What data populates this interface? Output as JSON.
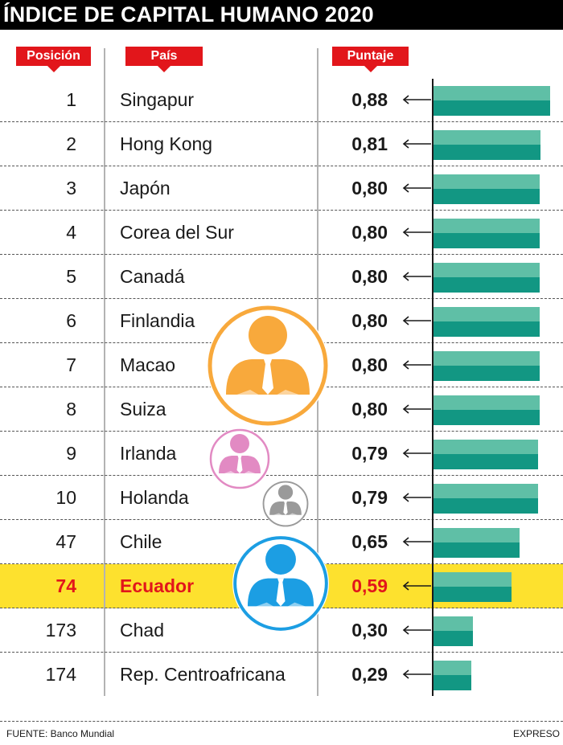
{
  "title": "ÍNDICE DE CAPITAL HUMANO 2020",
  "headers": {
    "position": "Posición",
    "country": "País",
    "score": "Puntaje"
  },
  "chart_data": {
    "type": "bar",
    "orientation": "horizontal",
    "title": "ÍNDICE DE CAPITAL HUMANO 2020",
    "value_min": 0,
    "rows": [
      {
        "position": "1",
        "country": "Singapur",
        "score": 0.88,
        "label": "0,88"
      },
      {
        "position": "2",
        "country": "Hong Kong",
        "score": 0.81,
        "label": "0,81"
      },
      {
        "position": "3",
        "country": "Japón",
        "score": 0.8,
        "label": "0,80"
      },
      {
        "position": "4",
        "country": "Corea del Sur",
        "score": 0.8,
        "label": "0,80"
      },
      {
        "position": "5",
        "country": "Canadá",
        "score": 0.8,
        "label": "0,80"
      },
      {
        "position": "6",
        "country": "Finlandia",
        "score": 0.8,
        "label": "0,80"
      },
      {
        "position": "7",
        "country": "Macao",
        "score": 0.8,
        "label": "0,80"
      },
      {
        "position": "8",
        "country": "Suiza",
        "score": 0.8,
        "label": "0,80"
      },
      {
        "position": "9",
        "country": "Irlanda",
        "score": 0.79,
        "label": "0,79"
      },
      {
        "position": "10",
        "country": "Holanda",
        "score": 0.79,
        "label": "0,79"
      },
      {
        "position": "47",
        "country": "Chile",
        "score": 0.65,
        "label": "0,65"
      },
      {
        "position": "74",
        "country": "Ecuador",
        "score": 0.59,
        "label": "0,59",
        "highlight": true
      },
      {
        "position": "173",
        "country": "Chad",
        "score": 0.3,
        "label": "0,30"
      },
      {
        "position": "174",
        "country": "Rep. Centroafricana",
        "score": 0.29,
        "label": "0,29"
      }
    ]
  },
  "colors": {
    "header_red": "#e2161b",
    "highlight_yellow": "#fde12e",
    "bar_light": "#5fbfa6",
    "bar_dark": "#129783",
    "person_orange": "#f8a93c",
    "person_pink": "#e28ac3",
    "person_gray": "#9a9a9a",
    "person_blue": "#1c9ee3"
  },
  "icons": [
    "person-orange-icon",
    "person-pink-icon",
    "person-gray-icon",
    "person-blue-icon",
    "arrow-left-icon"
  ],
  "footer": {
    "source": "FUENTE: Banco Mundial",
    "brand": "EXPRESO"
  }
}
